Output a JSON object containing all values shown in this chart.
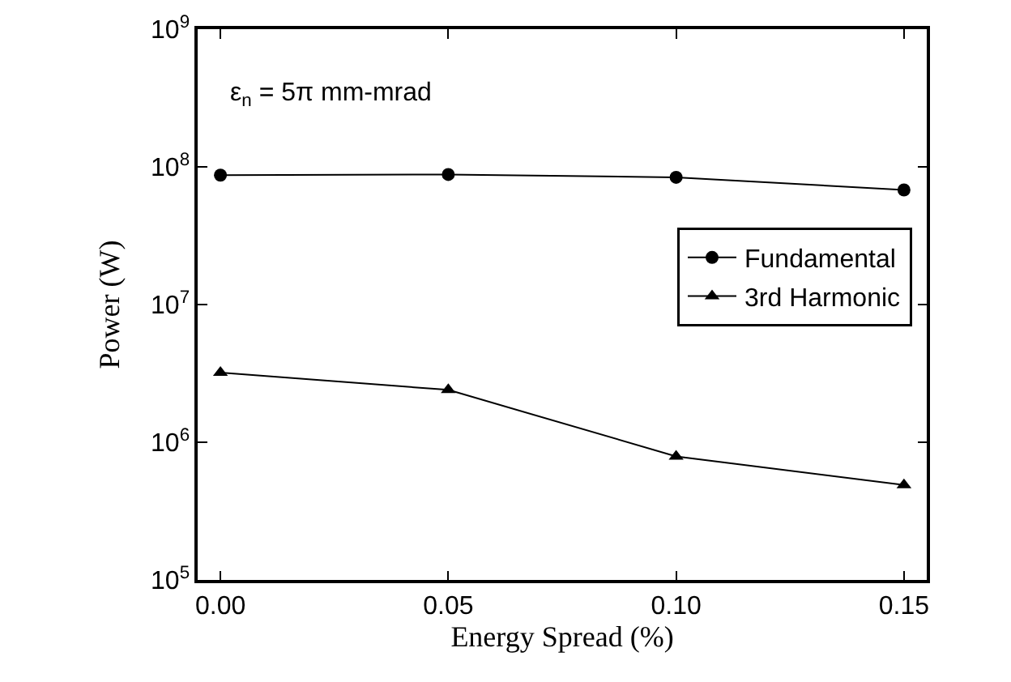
{
  "chart_data": {
    "type": "line",
    "xlabel": "Energy Spread (%)",
    "ylabel": "Power (W)",
    "x": [
      0,
      0.05,
      0.1,
      0.15
    ],
    "series": [
      {
        "name": "Fundamental",
        "color": "#000000",
        "marker": "circle",
        "values": [
          87000000,
          88000000,
          84000000,
          68000000
        ]
      },
      {
        "name": "3rd Harmonic",
        "color": "#000000",
        "marker": "triangle",
        "values": [
          3200000,
          2400000,
          790000,
          490000
        ]
      }
    ],
    "log": true,
    "xlim": [
      -0.005,
      0.155
    ],
    "xticks": [
      {
        "value": 0,
        "label": "0.00"
      },
      {
        "value": 0.05,
        "label": "0.05"
      },
      {
        "value": 0.1,
        "label": "0.10"
      },
      {
        "value": 0.15,
        "label": "0.15"
      }
    ],
    "ylim": [
      100000,
      1000000000
    ],
    "yticks": [
      {
        "value": 100000,
        "label": "10$^{5}$"
      },
      {
        "value": 1000000,
        "label": "10$^{6}$"
      },
      {
        "value": 10000000,
        "label": "10$^{7}$"
      },
      {
        "value": 100000000,
        "label": "10$^{8}$"
      },
      {
        "value": 1000000000,
        "label": "10$^{9}$"
      }
    ],
    "grid": false,
    "legend": "right",
    "line_style": "solid",
    "annotations": [
      "ε$_{n}$ = 5π mm-mrad"
    ]
  }
}
